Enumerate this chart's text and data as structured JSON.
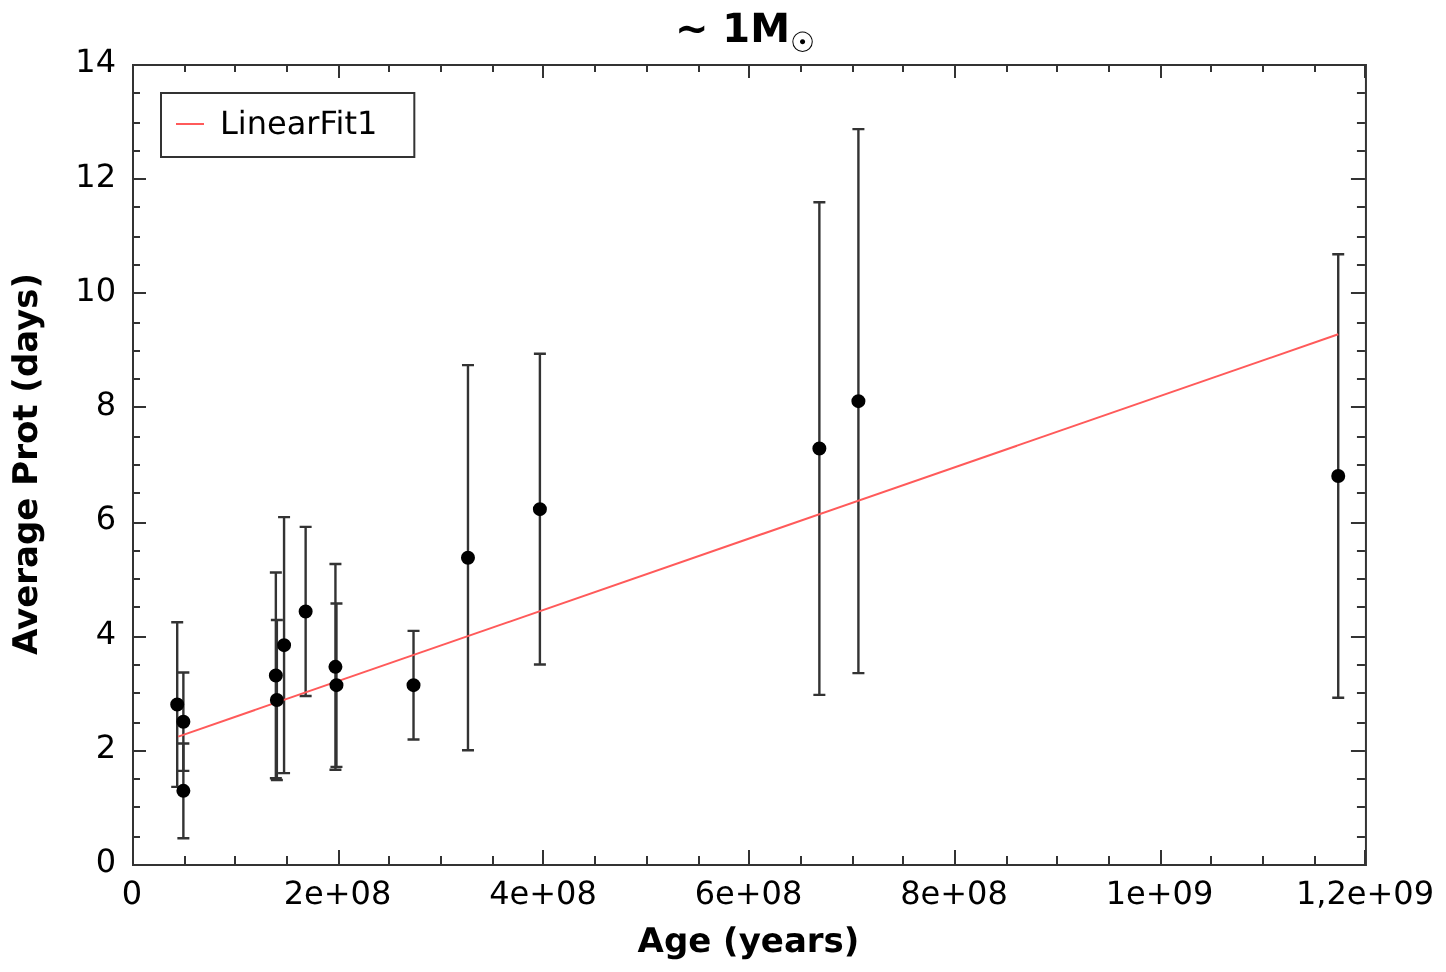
{
  "chart_data": {
    "type": "scatter",
    "title": "~ 1M$_{☉}$",
    "xlabel": "Age (years)",
    "ylabel": "Average Prot (days)",
    "series": [
      {
        "type": "scatter",
        "marker": "circle",
        "color": "#000000",
        "x": [
          44000000,
          50000000,
          50000000,
          140000000,
          141000000,
          148000000,
          169000000,
          198000000,
          199000000,
          274000000,
          327000000,
          397000000,
          669000000,
          707000000,
          1174000000
        ],
        "values": [
          2.79,
          2.49,
          1.28,
          3.3,
          2.87,
          3.83,
          4.42,
          3.45,
          3.13,
          3.13,
          5.36,
          6.21,
          7.27,
          8.1,
          6.79
        ],
        "errors": [
          1.44,
          0.86,
          0.83,
          1.8,
          1.4,
          2.24,
          1.48,
          1.8,
          1.43,
          0.95,
          3.37,
          2.72,
          4.31,
          4.76,
          3.88
        ]
      },
      {
        "type": "line",
        "name": "LinearFit1",
        "color": "#ff5a5a",
        "x": [
          45000000,
          1174000000
        ],
        "values": [
          2.23,
          9.27
        ]
      }
    ],
    "xlim": [
      0,
      1200000000
    ],
    "xticks": [
      0,
      {
        "value": 50000000,
        "label": null
      },
      {
        "value": 100000000,
        "label": null
      },
      {
        "value": 150000000,
        "label": null
      },
      {
        "value": 200000000,
        "label": "2e+08"
      },
      {
        "value": 250000000,
        "label": null
      },
      {
        "value": 300000000,
        "label": null
      },
      {
        "value": 350000000,
        "label": null
      },
      {
        "value": 400000000,
        "label": "4e+08"
      },
      {
        "value": 450000000,
        "label": null
      },
      {
        "value": 500000000,
        "label": null
      },
      {
        "value": 550000000,
        "label": null
      },
      {
        "value": 600000000,
        "label": "6e+08"
      },
      {
        "value": 650000000,
        "label": null
      },
      {
        "value": 700000000,
        "label": null
      },
      {
        "value": 750000000,
        "label": null
      },
      {
        "value": 800000000,
        "label": "8e+08"
      },
      {
        "value": 850000000,
        "label": null
      },
      {
        "value": 900000000,
        "label": null
      },
      {
        "value": 950000000,
        "label": null
      },
      {
        "value": 1000000000,
        "label": "1e+09"
      },
      {
        "value": 1050000000,
        "label": null
      },
      {
        "value": 1100000000,
        "label": null
      },
      {
        "value": 1150000000,
        "label": null
      },
      {
        "value": 1200000000,
        "label": "1,2e+09"
      }
    ],
    "ylim": [
      0,
      14
    ],
    "yticks": [
      0,
      {
        "value": 0.5,
        "label": null
      },
      {
        "value": 1,
        "label": null
      },
      {
        "value": 1.5,
        "label": null
      },
      2,
      {
        "value": 2.5,
        "label": null
      },
      {
        "value": 3,
        "label": null
      },
      {
        "value": 3.5,
        "label": null
      },
      4,
      {
        "value": 4.5,
        "label": null
      },
      {
        "value": 5,
        "label": null
      },
      {
        "value": 5.5,
        "label": null
      },
      6,
      {
        "value": 6.5,
        "label": null
      },
      {
        "value": 7,
        "label": null
      },
      {
        "value": 7.5,
        "label": null
      },
      8,
      {
        "value": 8.5,
        "label": null
      },
      {
        "value": 9,
        "label": null
      },
      {
        "value": 9.5,
        "label": null
      },
      10,
      {
        "value": 10.5,
        "label": null
      },
      {
        "value": 11,
        "label": null
      },
      {
        "value": 11.5,
        "label": null
      },
      12,
      {
        "value": 12.5,
        "label": null
      },
      {
        "value": 13,
        "label": null
      },
      {
        "value": 13.5,
        "label": null
      },
      14
    ],
    "grid": false,
    "legend": "top left"
  }
}
